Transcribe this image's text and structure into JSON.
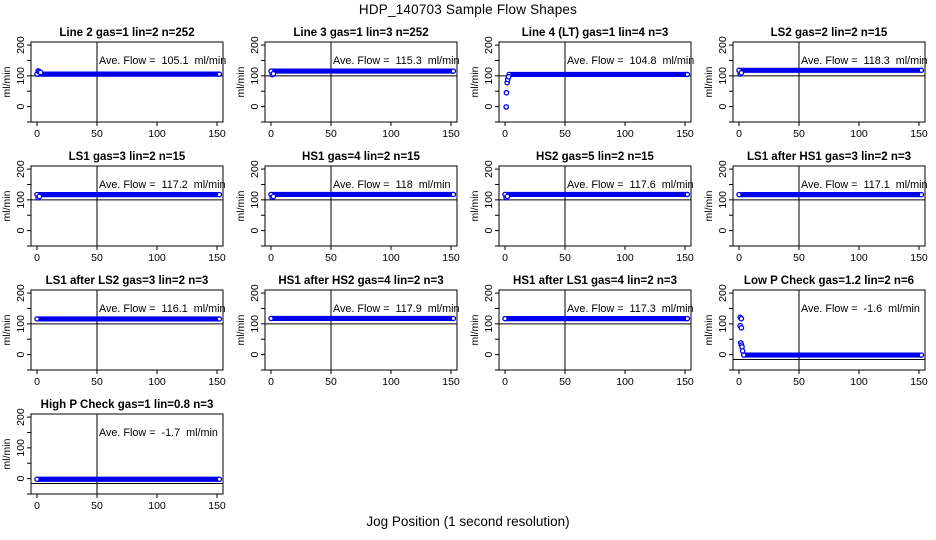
{
  "chart_data": {
    "type": "scatter",
    "title": "HDP_140703  Sample Flow Shapes",
    "x_axis_label": "Jog Position (1 second resolution)",
    "y_axis_label": "ml/min",
    "layout": {
      "rows": 4,
      "cols": 4,
      "grid": "off",
      "legend": "none",
      "vertical_ref_line_x": 50
    },
    "xlim": [
      -5,
      155
    ],
    "ylim": [
      -50,
      210
    ],
    "x_ticks": [
      0,
      50,
      100,
      150
    ],
    "y_ticks_all": [
      -50,
      0,
      50,
      100,
      150,
      200
    ],
    "y_ticks_labeled": [
      0,
      100,
      200
    ],
    "point_color": "#0000ee",
    "ref_line_color": "#000000",
    "plots": [
      {
        "name": "line2",
        "title": "Line 2 gas=1 lin=2 n=252",
        "ave_flow": 105.1,
        "ave_label": "Ave. Flow =  105.1  ml/min",
        "ref_line_y": 100,
        "band": {
          "x_start": 0,
          "x_end": 152,
          "center": 105.5
        },
        "outliers": [
          [
            1,
            116
          ],
          [
            2,
            114
          ],
          [
            3,
            111
          ]
        ]
      },
      {
        "name": "line3",
        "title": "Line 3 gas=1 lin=3 n=252",
        "ave_flow": 115.3,
        "ave_label": "Ave. Flow =  115.3  ml/min",
        "ref_line_y": 100,
        "band": {
          "x_start": 0,
          "x_end": 152,
          "center": 115.5
        },
        "outliers": [
          [
            1,
            104
          ],
          [
            2,
            107
          ]
        ]
      },
      {
        "name": "line4-lt",
        "title": "Line 4 (LT) gas=1 lin=4 n=3",
        "ave_flow": 104.8,
        "ave_label": "Ave. Flow =  104.8  ml/min",
        "ref_line_y": 100,
        "band": {
          "x_start": 3.5,
          "x_end": 152,
          "center": 104.5
        },
        "outliers": [
          [
            1,
            -1
          ],
          [
            1.2,
            45
          ],
          [
            1.8,
            78
          ],
          [
            2.3,
            88
          ],
          [
            3,
            97
          ]
        ]
      },
      {
        "name": "ls2",
        "title": "LS2 gas=2 lin=2 n=15",
        "ave_flow": 118.3,
        "ave_label": "Ave. Flow =  118.3  ml/min",
        "ref_line_y": 100,
        "band": {
          "x_start": 0,
          "x_end": 152,
          "center": 118
        },
        "outliers": [
          [
            1,
            106
          ],
          [
            2,
            110
          ]
        ]
      },
      {
        "name": "ls1",
        "title": "LS1 gas=3 lin=2 n=15",
        "ave_flow": 117.2,
        "ave_label": "Ave. Flow =  117.2  ml/min",
        "ref_line_y": 100,
        "band": {
          "x_start": 0,
          "x_end": 152,
          "center": 117
        },
        "outliers": [
          [
            1,
            107
          ],
          [
            2,
            111
          ]
        ]
      },
      {
        "name": "hs1",
        "title": "HS1 gas=4 lin=2 n=15",
        "ave_flow": 118,
        "ave_label": "Ave. Flow =  118  ml/min",
        "ref_line_y": 100,
        "band": {
          "x_start": 0,
          "x_end": 152,
          "center": 117.5
        },
        "outliers": [
          [
            1,
            108
          ],
          [
            2,
            111
          ]
        ]
      },
      {
        "name": "hs2",
        "title": "HS2 gas=5 lin=2 n=15",
        "ave_flow": 117.6,
        "ave_label": "Ave. Flow =  117.6  ml/min",
        "ref_line_y": 100,
        "band": {
          "x_start": 0,
          "x_end": 152,
          "center": 117.5
        },
        "outliers": [
          [
            1,
            107
          ],
          [
            2,
            111
          ]
        ]
      },
      {
        "name": "ls1-after-hs1",
        "title": "LS1 after HS1 gas=3 lin=2 n=3",
        "ave_flow": 117.1,
        "ave_label": "Ave. Flow =  117.1  ml/min",
        "ref_line_y": 100,
        "band": {
          "x_start": 0,
          "x_end": 152,
          "center": 117
        },
        "outliers": []
      },
      {
        "name": "ls1-after-ls2",
        "title": "LS1 after LS2 gas=3 lin=2 n=3",
        "ave_flow": 116.1,
        "ave_label": "Ave. Flow =  116.1  ml/min",
        "ref_line_y": 100,
        "band": {
          "x_start": 0,
          "x_end": 152,
          "center": 116
        },
        "outliers": []
      },
      {
        "name": "hs1-after-hs2",
        "title": "HS1 after HS2 gas=4 lin=2 n=3",
        "ave_flow": 117.9,
        "ave_label": "Ave. Flow =  117.9  ml/min",
        "ref_line_y": 100,
        "band": {
          "x_start": 0,
          "x_end": 152,
          "center": 117.5
        },
        "outliers": []
      },
      {
        "name": "hs1-after-ls1",
        "title": "HS1 after LS1 gas=4 lin=2 n=3",
        "ave_flow": 117.3,
        "ave_label": "Ave. Flow =  117.3  ml/min",
        "ref_line_y": 100,
        "band": {
          "x_start": 0,
          "x_end": 152,
          "center": 117
        },
        "outliers": []
      },
      {
        "name": "low-p-check",
        "title": "Low P Check gas=1.2 lin=2 n=6",
        "ave_flow": -1.6,
        "ave_label": "Ave. Flow =  -1.6  ml/min",
        "ref_line_y": -16,
        "band": {
          "x_start": 4,
          "x_end": 152,
          "center": -1.5
        },
        "outliers": [
          [
            1,
            121
          ],
          [
            2,
            117
          ],
          [
            1,
            94
          ],
          [
            2,
            87
          ],
          [
            1.5,
            38
          ],
          [
            2,
            31
          ],
          [
            2.5,
            25
          ],
          [
            3,
            12
          ]
        ]
      },
      {
        "name": "high-p-check",
        "title": "High P Check gas=1 lin=0.8 n=3",
        "ave_flow": -1.7,
        "ave_label": "Ave. Flow =  -1.7  ml/min",
        "ref_line_y": -16,
        "band": {
          "x_start": 0,
          "x_end": 152,
          "center": -2
        },
        "outliers": []
      }
    ]
  }
}
